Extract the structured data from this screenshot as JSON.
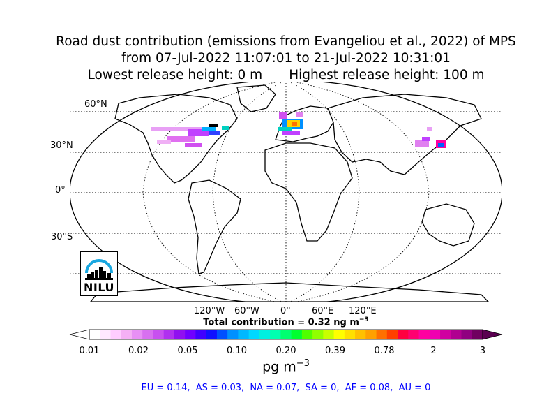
{
  "title": {
    "line1": "Road dust contribution (emissions from Evangeliou et al., 2022) of MPS",
    "line2": "from 07-Jul-2022 11:07:01 to 21-Jul-2022 10:31:01",
    "line3a": "Lowest release height: 0 m",
    "line3b": "Highest release height: 100 m"
  },
  "lat_labels": [
    "60°N",
    "30°N",
    "0°",
    "30°S"
  ],
  "lon_labels": [
    "120°W",
    "60°W",
    "0°",
    "60°E",
    "120°E"
  ],
  "total_prefix": "Total contribution = 0.32 ng m",
  "total_exp": "−3",
  "colorbar": {
    "ticks": [
      "0.01",
      "0.02",
      "0.05",
      "0.10",
      "0.20",
      "0.39",
      "0.78",
      "2",
      "3"
    ],
    "colors": [
      "#ffffff",
      "#ffe8ff",
      "#ffcdff",
      "#f5b0f5",
      "#e890f5",
      "#d870f0",
      "#c850f0",
      "#b030f0",
      "#9010f0",
      "#7000ff",
      "#4000ff",
      "#1010ff",
      "#0050ff",
      "#0090ff",
      "#00b8ff",
      "#00d8ff",
      "#00f0e0",
      "#00ffb0",
      "#00ff70",
      "#00ff30",
      "#50ff00",
      "#90ff00",
      "#c8ff00",
      "#ffff00",
      "#ffe000",
      "#ffc000",
      "#ffa000",
      "#ff7000",
      "#ff4000",
      "#ff0040",
      "#ff0070",
      "#ff00a0",
      "#f000b0",
      "#d000a0",
      "#b00090",
      "#900080",
      "#700060"
    ]
  },
  "unit_base": "pg m",
  "unit_exp": "−3",
  "summary": "EU = 0.14,  AS = 0.03,  NA = 0.07,  SA = 0,  AF = 0.08,  AU = 0",
  "logo_text": "NILU"
}
